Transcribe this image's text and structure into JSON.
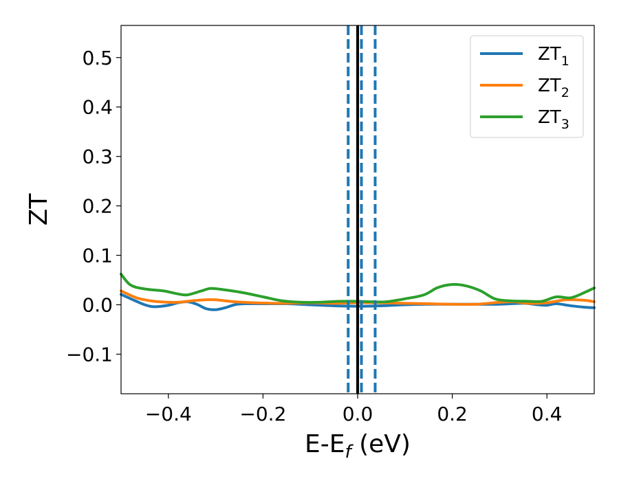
{
  "chart_data": {
    "type": "line",
    "title": "",
    "xlabel": "E-E",
    "xlabel_sub": "f",
    "xlabel_unit": " (eV)",
    "ylabel": "ZT",
    "xlim": [
      -0.5,
      0.5
    ],
    "ylim": [
      -0.18,
      0.565
    ],
    "xticks": [
      -0.4,
      -0.2,
      0.0,
      0.2,
      0.4
    ],
    "xtick_labels": [
      "−0.4",
      "−0.2",
      "0.0",
      "0.2",
      "0.4"
    ],
    "yticks": [
      -0.1,
      0.0,
      0.1,
      0.2,
      0.3,
      0.4,
      0.5
    ],
    "ytick_labels": [
      "−0.1",
      "0.0",
      "0.1",
      "0.2",
      "0.3",
      "0.4",
      "0.5"
    ],
    "grid": false,
    "legend_position": "top-right",
    "vlines": [
      {
        "x": 0.0,
        "style": "solid",
        "color": "#000000"
      },
      {
        "x": -0.02,
        "style": "dashed",
        "color": "#1f77b4"
      },
      {
        "x": 0.008,
        "style": "dashed",
        "color": "#1f77b4"
      },
      {
        "x": 0.037,
        "style": "dashed",
        "color": "#1f77b4"
      }
    ],
    "series": [
      {
        "name": "ZT",
        "sub": "1",
        "color": "#1f77b4",
        "points": [
          [
            -0.5,
            0.021
          ],
          [
            -0.47,
            0.008
          ],
          [
            -0.45,
            0.0
          ],
          [
            -0.43,
            -0.004
          ],
          [
            -0.4,
            -0.001
          ],
          [
            -0.38,
            0.004
          ],
          [
            -0.36,
            0.006
          ],
          [
            -0.34,
            0.001
          ],
          [
            -0.32,
            -0.008
          ],
          [
            -0.3,
            -0.01
          ],
          [
            -0.28,
            -0.006
          ],
          [
            -0.26,
            0.0
          ],
          [
            -0.24,
            0.002
          ],
          [
            -0.2,
            0.002
          ],
          [
            -0.15,
            0.002
          ],
          [
            -0.1,
            0.0
          ],
          [
            -0.05,
            -0.002
          ],
          [
            0.0,
            -0.003
          ],
          [
            0.05,
            -0.002
          ],
          [
            0.1,
            0.0
          ],
          [
            0.15,
            0.001
          ],
          [
            0.2,
            0.001
          ],
          [
            0.25,
            0.001
          ],
          [
            0.3,
            0.001
          ],
          [
            0.35,
            0.003
          ],
          [
            0.38,
            0.0
          ],
          [
            0.4,
            -0.001
          ],
          [
            0.42,
            0.002
          ],
          [
            0.45,
            -0.002
          ],
          [
            0.48,
            -0.005
          ],
          [
            0.5,
            -0.006
          ]
        ]
      },
      {
        "name": "ZT",
        "sub": "2",
        "color": "#ff7f0e",
        "points": [
          [
            -0.5,
            0.028
          ],
          [
            -0.47,
            0.015
          ],
          [
            -0.45,
            0.01
          ],
          [
            -0.42,
            0.006
          ],
          [
            -0.38,
            0.005
          ],
          [
            -0.35,
            0.008
          ],
          [
            -0.32,
            0.01
          ],
          [
            -0.3,
            0.01
          ],
          [
            -0.26,
            0.006
          ],
          [
            -0.22,
            0.004
          ],
          [
            -0.18,
            0.003
          ],
          [
            -0.15,
            0.003
          ],
          [
            -0.1,
            0.004
          ],
          [
            -0.05,
            0.003
          ],
          [
            0.0,
            0.004
          ],
          [
            0.05,
            0.004
          ],
          [
            0.1,
            0.003
          ],
          [
            0.15,
            0.002
          ],
          [
            0.2,
            0.001
          ],
          [
            0.25,
            0.001
          ],
          [
            0.3,
            0.005
          ],
          [
            0.33,
            0.006
          ],
          [
            0.36,
            0.003
          ],
          [
            0.4,
            0.004
          ],
          [
            0.44,
            0.01
          ],
          [
            0.48,
            0.009
          ],
          [
            0.5,
            0.006
          ]
        ]
      },
      {
        "name": "ZT",
        "sub": "3",
        "color": "#2ca02c",
        "points": [
          [
            -0.5,
            0.062
          ],
          [
            -0.48,
            0.04
          ],
          [
            -0.45,
            0.032
          ],
          [
            -0.41,
            0.028
          ],
          [
            -0.38,
            0.022
          ],
          [
            -0.36,
            0.02
          ],
          [
            -0.33,
            0.028
          ],
          [
            -0.31,
            0.033
          ],
          [
            -0.28,
            0.03
          ],
          [
            -0.24,
            0.024
          ],
          [
            -0.2,
            0.016
          ],
          [
            -0.16,
            0.008
          ],
          [
            -0.12,
            0.005
          ],
          [
            -0.08,
            0.005
          ],
          [
            -0.04,
            0.007
          ],
          [
            0.0,
            0.007
          ],
          [
            0.03,
            0.006
          ],
          [
            0.06,
            0.006
          ],
          [
            0.1,
            0.012
          ],
          [
            0.14,
            0.02
          ],
          [
            0.17,
            0.035
          ],
          [
            0.2,
            0.041
          ],
          [
            0.23,
            0.038
          ],
          [
            0.26,
            0.028
          ],
          [
            0.29,
            0.012
          ],
          [
            0.32,
            0.008
          ],
          [
            0.36,
            0.007
          ],
          [
            0.39,
            0.007
          ],
          [
            0.42,
            0.016
          ],
          [
            0.45,
            0.014
          ],
          [
            0.48,
            0.025
          ],
          [
            0.5,
            0.034
          ]
        ]
      }
    ]
  }
}
